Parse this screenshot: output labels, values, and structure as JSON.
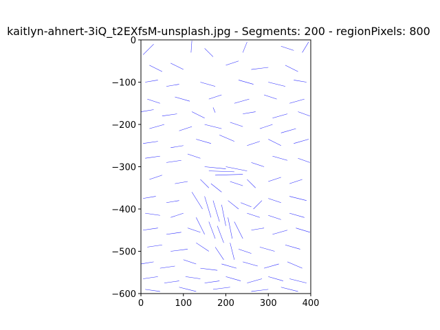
{
  "chart_data": {
    "type": "line",
    "title": "kaitlyn-ahnert-3iQ_t2EXfsM-unsplash.jpg - Segments: 200 - regionPixels: 800",
    "xlabel": "",
    "ylabel": "",
    "xlim": [
      0,
      400
    ],
    "ylim": [
      -600,
      0
    ],
    "xticks": [
      0,
      100,
      200,
      300,
      400
    ],
    "yticks": [
      0,
      -100,
      -200,
      -300,
      -400,
      -500,
      -600
    ],
    "xtick_labels": [
      "0",
      "100",
      "200",
      "300",
      "400"
    ],
    "ytick_labels": [
      "0",
      "−100",
      "−200",
      "−300",
      "−400",
      "−500",
      "−600"
    ],
    "series_color": "#0000ff",
    "grid": false,
    "segments": [
      [
        [
          5,
          -35
        ],
        [
          30,
          -10
        ]
      ],
      [
        [
          120,
          -2
        ],
        [
          118,
          -30
        ]
      ],
      [
        [
          150,
          -20
        ],
        [
          170,
          -40
        ]
      ],
      [
        [
          250,
          -5
        ],
        [
          240,
          -30
        ]
      ],
      [
        [
          330,
          -15
        ],
        [
          360,
          -25
        ]
      ],
      [
        [
          380,
          -30
        ],
        [
          395,
          -5
        ]
      ],
      [
        [
          20,
          -60
        ],
        [
          50,
          -75
        ]
      ],
      [
        [
          70,
          -55
        ],
        [
          100,
          -70
        ]
      ],
      [
        [
          200,
          -60
        ],
        [
          230,
          -50
        ]
      ],
      [
        [
          260,
          -70
        ],
        [
          300,
          -65
        ]
      ],
      [
        [
          340,
          -60
        ],
        [
          370,
          -75
        ]
      ],
      [
        [
          10,
          -100
        ],
        [
          40,
          -95
        ]
      ],
      [
        [
          60,
          -110
        ],
        [
          90,
          -105
        ]
      ],
      [
        [
          140,
          -100
        ],
        [
          175,
          -110
        ]
      ],
      [
        [
          230,
          -95
        ],
        [
          265,
          -105
        ]
      ],
      [
        [
          300,
          -100
        ],
        [
          340,
          -110
        ]
      ],
      [
        [
          360,
          -95
        ],
        [
          390,
          -100
        ]
      ],
      [
        [
          15,
          -140
        ],
        [
          45,
          -150
        ]
      ],
      [
        [
          80,
          -135
        ],
        [
          115,
          -145
        ]
      ],
      [
        [
          160,
          -140
        ],
        [
          190,
          -130
        ]
      ],
      [
        [
          220,
          -150
        ],
        [
          255,
          -140
        ]
      ],
      [
        [
          290,
          -130
        ],
        [
          320,
          -140
        ]
      ],
      [
        [
          350,
          -150
        ],
        [
          385,
          -140
        ]
      ],
      [
        [
          0,
          -170
        ],
        [
          30,
          -165
        ]
      ],
      [
        [
          50,
          -180
        ],
        [
          85,
          -175
        ]
      ],
      [
        [
          120,
          -170
        ],
        [
          150,
          -185
        ]
      ],
      [
        [
          170,
          -160
        ],
        [
          175,
          -172
        ]
      ],
      [
        [
          240,
          -175
        ],
        [
          270,
          -170
        ]
      ],
      [
        [
          310,
          -185
        ],
        [
          345,
          -175
        ]
      ],
      [
        [
          370,
          -170
        ],
        [
          398,
          -180
        ]
      ],
      [
        [
          20,
          -210
        ],
        [
          55,
          -200
        ]
      ],
      [
        [
          90,
          -215
        ],
        [
          120,
          -205
        ]
      ],
      [
        [
          150,
          -200
        ],
        [
          190,
          -210
        ]
      ],
      [
        [
          210,
          -195
        ],
        [
          240,
          -205
        ]
      ],
      [
        [
          280,
          -210
        ],
        [
          310,
          -200
        ]
      ],
      [
        [
          330,
          -220
        ],
        [
          365,
          -210
        ]
      ],
      [
        [
          5,
          -245
        ],
        [
          40,
          -240
        ]
      ],
      [
        [
          70,
          -255
        ],
        [
          100,
          -250
        ]
      ],
      [
        [
          130,
          -235
        ],
        [
          165,
          -245
        ]
      ],
      [
        [
          185,
          -225
        ],
        [
          220,
          -240
        ]
      ],
      [
        [
          250,
          -250
        ],
        [
          280,
          -240
        ]
      ],
      [
        [
          300,
          -235
        ],
        [
          330,
          -250
        ]
      ],
      [
        [
          360,
          -245
        ],
        [
          395,
          -235
        ]
      ],
      [
        [
          10,
          -280
        ],
        [
          45,
          -275
        ]
      ],
      [
        [
          60,
          -290
        ],
        [
          95,
          -285
        ]
      ],
      [
        [
          110,
          -270
        ],
        [
          140,
          -280
        ]
      ],
      [
        [
          150,
          -300
        ],
        [
          200,
          -305
        ]
      ],
      [
        [
          160,
          -310
        ],
        [
          220,
          -312
        ]
      ],
      [
        [
          175,
          -320
        ],
        [
          240,
          -318
        ]
      ],
      [
        [
          200,
          -300
        ],
        [
          250,
          -310
        ]
      ],
      [
        [
          260,
          -290
        ],
        [
          290,
          -300
        ]
      ],
      [
        [
          310,
          -275
        ],
        [
          345,
          -285
        ]
      ],
      [
        [
          370,
          -280
        ],
        [
          398,
          -290
        ]
      ],
      [
        [
          20,
          -330
        ],
        [
          50,
          -320
        ]
      ],
      [
        [
          80,
          -340
        ],
        [
          110,
          -335
        ]
      ],
      [
        [
          140,
          -330
        ],
        [
          160,
          -350
        ]
      ],
      [
        [
          165,
          -340
        ],
        [
          190,
          -360
        ]
      ],
      [
        [
          210,
          -335
        ],
        [
          240,
          -345
        ]
      ],
      [
        [
          250,
          -330
        ],
        [
          270,
          -350
        ]
      ],
      [
        [
          300,
          -335
        ],
        [
          330,
          -325
        ]
      ],
      [
        [
          350,
          -340
        ],
        [
          380,
          -330
        ]
      ],
      [
        [
          5,
          -375
        ],
        [
          35,
          -370
        ]
      ],
      [
        [
          60,
          -385
        ],
        [
          90,
          -380
        ]
      ],
      [
        [
          120,
          -360
        ],
        [
          145,
          -400
        ]
      ],
      [
        [
          150,
          -370
        ],
        [
          165,
          -420
        ]
      ],
      [
        [
          170,
          -380
        ],
        [
          185,
          -430
        ]
      ],
      [
        [
          190,
          -390
        ],
        [
          200,
          -440
        ]
      ],
      [
        [
          205,
          -380
        ],
        [
          230,
          -400
        ]
      ],
      [
        [
          235,
          -385
        ],
        [
          260,
          -395
        ]
      ],
      [
        [
          265,
          -400
        ],
        [
          285,
          -380
        ]
      ],
      [
        [
          300,
          -375
        ],
        [
          330,
          -385
        ]
      ],
      [
        [
          350,
          -370
        ],
        [
          390,
          -380
        ]
      ],
      [
        [
          10,
          -410
        ],
        [
          45,
          -415
        ]
      ],
      [
        [
          70,
          -420
        ],
        [
          100,
          -410
        ]
      ],
      [
        [
          130,
          -420
        ],
        [
          150,
          -460
        ]
      ],
      [
        [
          160,
          -430
        ],
        [
          175,
          -470
        ]
      ],
      [
        [
          180,
          -440
        ],
        [
          195,
          -480
        ]
      ],
      [
        [
          205,
          -420
        ],
        [
          215,
          -470
        ]
      ],
      [
        [
          220,
          -430
        ],
        [
          240,
          -470
        ]
      ],
      [
        [
          250,
          -410
        ],
        [
          280,
          -420
        ]
      ],
      [
        [
          300,
          -415
        ],
        [
          330,
          -425
        ]
      ],
      [
        [
          350,
          -410
        ],
        [
          385,
          -420
        ]
      ],
      [
        [
          5,
          -450
        ],
        [
          40,
          -445
        ]
      ],
      [
        [
          60,
          -460
        ],
        [
          95,
          -455
        ]
      ],
      [
        [
          110,
          -445
        ],
        [
          140,
          -455
        ]
      ],
      [
        [
          260,
          -450
        ],
        [
          290,
          -445
        ]
      ],
      [
        [
          310,
          -460
        ],
        [
          345,
          -450
        ]
      ],
      [
        [
          365,
          -445
        ],
        [
          398,
          -455
        ]
      ],
      [
        [
          15,
          -490
        ],
        [
          50,
          -485
        ]
      ],
      [
        [
          70,
          -500
        ],
        [
          110,
          -495
        ]
      ],
      [
        [
          130,
          -480
        ],
        [
          160,
          -500
        ]
      ],
      [
        [
          175,
          -490
        ],
        [
          195,
          -520
        ]
      ],
      [
        [
          210,
          -480
        ],
        [
          220,
          -520
        ]
      ],
      [
        [
          230,
          -495
        ],
        [
          260,
          -505
        ]
      ],
      [
        [
          280,
          -490
        ],
        [
          315,
          -500
        ]
      ],
      [
        [
          340,
          -485
        ],
        [
          375,
          -495
        ]
      ],
      [
        [
          0,
          -530
        ],
        [
          30,
          -525
        ]
      ],
      [
        [
          45,
          -540
        ],
        [
          80,
          -535
        ]
      ],
      [
        [
          100,
          -520
        ],
        [
          130,
          -530
        ]
      ],
      [
        [
          140,
          -540
        ],
        [
          180,
          -545
        ]
      ],
      [
        [
          190,
          -530
        ],
        [
          225,
          -540
        ]
      ],
      [
        [
          240,
          -525
        ],
        [
          275,
          -535
        ]
      ],
      [
        [
          290,
          -540
        ],
        [
          325,
          -530
        ]
      ],
      [
        [
          345,
          -525
        ],
        [
          380,
          -540
        ]
      ],
      [
        [
          5,
          -565
        ],
        [
          40,
          -560
        ]
      ],
      [
        [
          55,
          -575
        ],
        [
          90,
          -570
        ]
      ],
      [
        [
          105,
          -560
        ],
        [
          140,
          -565
        ]
      ],
      [
        [
          150,
          -575
        ],
        [
          185,
          -570
        ]
      ],
      [
        [
          200,
          -560
        ],
        [
          235,
          -570
        ]
      ],
      [
        [
          250,
          -575
        ],
        [
          285,
          -565
        ]
      ],
      [
        [
          300,
          -560
        ],
        [
          335,
          -570
        ]
      ],
      [
        [
          350,
          -565
        ],
        [
          390,
          -575
        ]
      ],
      [
        [
          10,
          -590
        ],
        [
          45,
          -595
        ]
      ],
      [
        [
          90,
          -585
        ],
        [
          130,
          -595
        ]
      ],
      [
        [
          170,
          -590
        ],
        [
          210,
          -585
        ]
      ],
      [
        [
          260,
          -595
        ],
        [
          300,
          -590
        ]
      ],
      [
        [
          330,
          -585
        ],
        [
          370,
          -595
        ]
      ]
    ]
  }
}
